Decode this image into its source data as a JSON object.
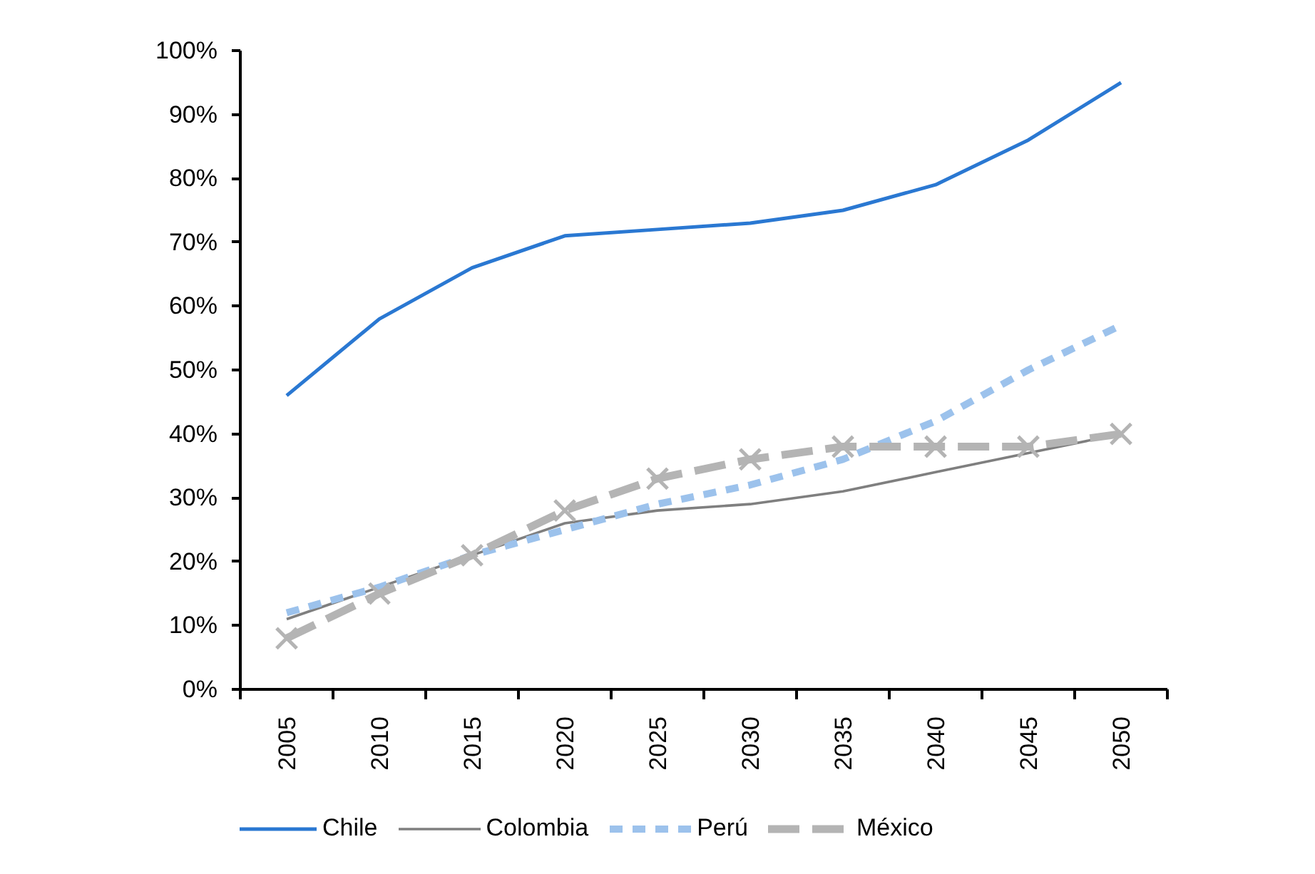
{
  "chart_data": {
    "type": "line",
    "categories": [
      "2005",
      "2010",
      "2015",
      "2020",
      "2025",
      "2030",
      "2035",
      "2040",
      "2045",
      "2050"
    ],
    "series": [
      {
        "name": "Chile",
        "color": "#2a78d2",
        "line_style": "solid",
        "values": [
          46,
          58,
          66,
          71,
          72,
          73,
          75,
          79,
          86,
          95
        ]
      },
      {
        "name": "Colombia",
        "color": "#7f7f7f",
        "line_style": "solid",
        "values": [
          11,
          16,
          21,
          26,
          28,
          29,
          31,
          34,
          37,
          40
        ]
      },
      {
        "name": "Perú",
        "color": "#9cc2ec",
        "line_style": "dotted",
        "values": [
          12,
          16,
          21,
          25,
          29,
          32,
          36,
          42,
          50,
          57
        ]
      },
      {
        "name": "México",
        "color": "#b4b4b4",
        "line_style": "dashed",
        "marker": "cross",
        "values": [
          8,
          15,
          21,
          28,
          33,
          36,
          38,
          38,
          38,
          40
        ]
      }
    ],
    "ylim": [
      0,
      100
    ],
    "yticks": [
      {
        "value": 0,
        "label": "0%"
      },
      {
        "value": 10,
        "label": "10%"
      },
      {
        "value": 20,
        "label": "20%"
      },
      {
        "value": 30,
        "label": "30%"
      },
      {
        "value": 40,
        "label": "40%"
      },
      {
        "value": 50,
        "label": "50%"
      },
      {
        "value": 60,
        "label": "60%"
      },
      {
        "value": 70,
        "label": "70%"
      },
      {
        "value": 80,
        "label": "80%"
      },
      {
        "value": 90,
        "label": "90%"
      },
      {
        "value": 100,
        "label": "100%"
      }
    ],
    "grid": false,
    "legend": "bottom"
  }
}
